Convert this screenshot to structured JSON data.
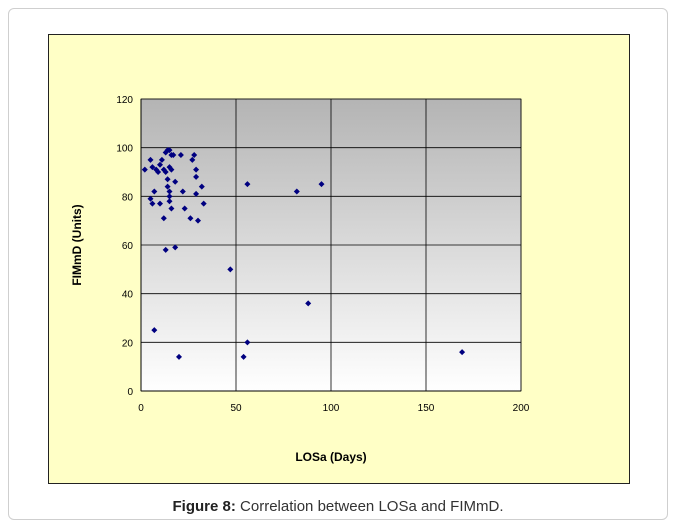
{
  "caption": {
    "label": "Figure 8:",
    "text": "Correlation between LOSa and FIMmD."
  },
  "colors": {
    "frame_bg": "#ffffc6",
    "plot_gradient_top": "#b4b4b4",
    "plot_gradient_bottom": "#ffffff",
    "marker": "#000080",
    "grid": "#000000"
  },
  "chart_data": {
    "type": "scatter",
    "title": "",
    "xlabel": "LOSa  (Days)",
    "ylabel": "FIMmD (Units)",
    "xlim": [
      0,
      200
    ],
    "ylim": [
      0,
      120
    ],
    "x_ticks": [
      "0",
      "50",
      "100",
      "150",
      "200"
    ],
    "y_ticks": [
      "0",
      "20",
      "40",
      "60",
      "80",
      "100",
      "120"
    ],
    "grid": true,
    "legend": "none",
    "marker": "diamond",
    "points": [
      [
        2,
        91
      ],
      [
        5,
        95
      ],
      [
        5,
        79
      ],
      [
        6,
        92
      ],
      [
        6,
        77
      ],
      [
        7,
        82
      ],
      [
        7,
        25
      ],
      [
        8,
        91
      ],
      [
        9,
        90
      ],
      [
        10,
        93
      ],
      [
        10,
        77
      ],
      [
        11,
        95
      ],
      [
        12,
        91
      ],
      [
        12,
        71
      ],
      [
        13,
        98
      ],
      [
        13,
        90
      ],
      [
        13,
        58
      ],
      [
        14,
        99
      ],
      [
        14,
        87
      ],
      [
        14,
        84
      ],
      [
        15,
        99
      ],
      [
        15,
        92
      ],
      [
        15,
        82
      ],
      [
        15,
        80
      ],
      [
        15,
        78
      ],
      [
        16,
        97
      ],
      [
        16,
        91
      ],
      [
        16,
        75
      ],
      [
        17,
        97
      ],
      [
        18,
        86
      ],
      [
        18,
        59
      ],
      [
        20,
        14
      ],
      [
        21,
        97
      ],
      [
        22,
        82
      ],
      [
        23,
        75
      ],
      [
        26,
        71
      ],
      [
        27,
        95
      ],
      [
        28,
        97
      ],
      [
        29,
        91
      ],
      [
        29,
        88
      ],
      [
        29,
        81
      ],
      [
        30,
        70
      ],
      [
        32,
        84
      ],
      [
        33,
        77
      ],
      [
        47,
        50
      ],
      [
        54,
        14
      ],
      [
        56,
        85
      ],
      [
        56,
        20
      ],
      [
        82,
        82
      ],
      [
        88,
        36
      ],
      [
        95,
        85
      ],
      [
        169,
        16
      ]
    ]
  }
}
